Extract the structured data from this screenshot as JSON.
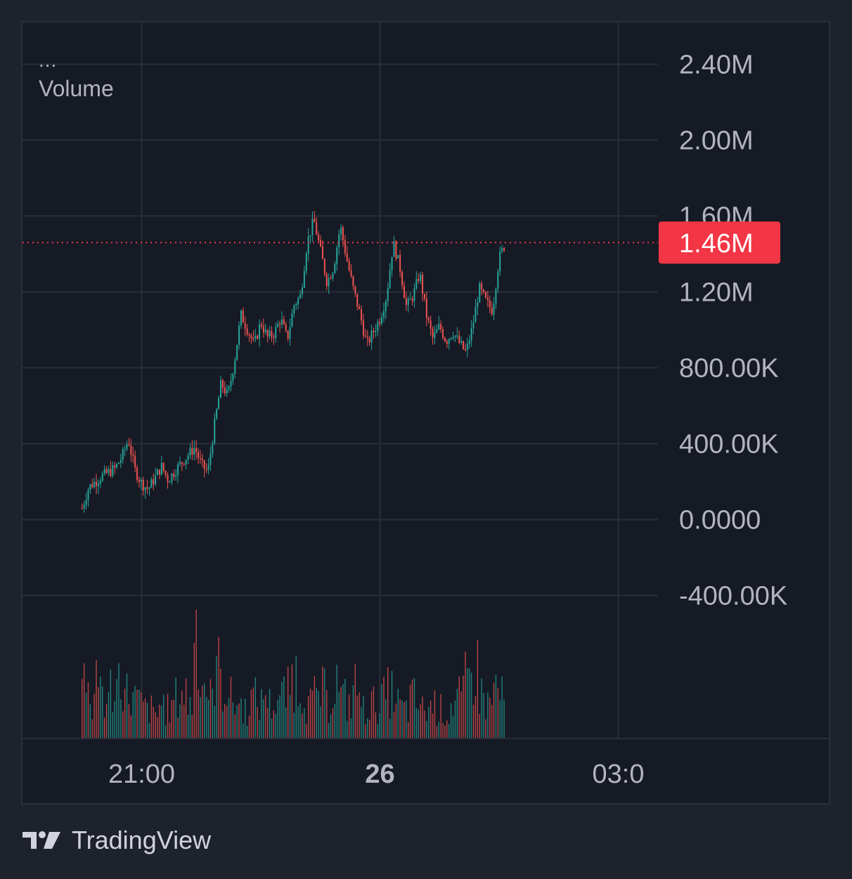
{
  "legend": {
    "collapse_glyph": "...",
    "title": "Volume"
  },
  "colors": {
    "background": "#161a25",
    "frame_border": "#2a2e39",
    "grid": "#2a2e39",
    "text": "#b2b5be",
    "up": "#26a69a",
    "down": "#ef5350",
    "last_value_badge": "#f23645"
  },
  "brand": {
    "logo_icon": "tradingview-logo-icon",
    "name": "TradingView"
  },
  "chart_data": {
    "type": "candlestick-with-volume",
    "title": "Volume",
    "y_axis": {
      "ticks": [
        2400000,
        2000000,
        1600000,
        1200000,
        800000,
        400000,
        0,
        -400000
      ],
      "tick_labels": [
        "2.40M",
        "2.00M",
        "1.60M",
        "1.20M",
        "800.00K",
        "400.00K",
        "0.0000",
        "-400.00K"
      ],
      "range": [
        -1150000,
        2620000
      ]
    },
    "x_axis": {
      "tick_labels": [
        "21:00",
        "26",
        "03:0"
      ],
      "bold_labels": [
        "26"
      ],
      "range": [
        "19:30",
        "03:30"
      ]
    },
    "last_value": {
      "label": "1.46M",
      "value": 1460000
    },
    "grid": true,
    "series": [
      {
        "kind": "candles",
        "points": [
          {
            "t": "20:15",
            "v": 60000
          },
          {
            "t": "20:20",
            "v": 170000
          },
          {
            "t": "20:30",
            "v": 230000
          },
          {
            "t": "20:40",
            "v": 270000
          },
          {
            "t": "20:45",
            "v": 330000
          },
          {
            "t": "20:50",
            "v": 420000
          },
          {
            "t": "20:55",
            "v": 260000
          },
          {
            "t": "21:00",
            "v": 190000
          },
          {
            "t": "21:05",
            "v": 160000
          },
          {
            "t": "21:10",
            "v": 220000
          },
          {
            "t": "21:15",
            "v": 280000
          },
          {
            "t": "21:20",
            "v": 210000
          },
          {
            "t": "21:30",
            "v": 300000
          },
          {
            "t": "21:40",
            "v": 380000
          },
          {
            "t": "21:45",
            "v": 290000
          },
          {
            "t": "21:50",
            "v": 250000
          },
          {
            "t": "21:55",
            "v": 500000
          },
          {
            "t": "22:00",
            "v": 720000
          },
          {
            "t": "22:05",
            "v": 650000
          },
          {
            "t": "22:10",
            "v": 830000
          },
          {
            "t": "22:15",
            "v": 1080000
          },
          {
            "t": "22:20",
            "v": 1000000
          },
          {
            "t": "22:25",
            "v": 920000
          },
          {
            "t": "22:30",
            "v": 1040000
          },
          {
            "t": "22:35",
            "v": 960000
          },
          {
            "t": "22:40",
            "v": 980000
          },
          {
            "t": "22:45",
            "v": 1060000
          },
          {
            "t": "22:50",
            "v": 950000
          },
          {
            "t": "22:55",
            "v": 1130000
          },
          {
            "t": "23:00",
            "v": 1180000
          },
          {
            "t": "23:05",
            "v": 1460000
          },
          {
            "t": "23:10",
            "v": 1580000
          },
          {
            "t": "23:15",
            "v": 1420000
          },
          {
            "t": "23:20",
            "v": 1250000
          },
          {
            "t": "23:25",
            "v": 1330000
          },
          {
            "t": "23:30",
            "v": 1550000
          },
          {
            "t": "23:35",
            "v": 1370000
          },
          {
            "t": "23:40",
            "v": 1210000
          },
          {
            "t": "23:45",
            "v": 1080000
          },
          {
            "t": "23:50",
            "v": 920000
          },
          {
            "t": "23:55",
            "v": 990000
          },
          {
            "t": "00:00",
            "v": 1060000
          },
          {
            "t": "00:05",
            "v": 1180000
          },
          {
            "t": "00:10",
            "v": 1460000
          },
          {
            "t": "00:15",
            "v": 1330000
          },
          {
            "t": "00:20",
            "v": 1120000
          },
          {
            "t": "00:25",
            "v": 1180000
          },
          {
            "t": "00:30",
            "v": 1300000
          },
          {
            "t": "00:35",
            "v": 1080000
          },
          {
            "t": "00:40",
            "v": 950000
          },
          {
            "t": "00:45",
            "v": 1020000
          },
          {
            "t": "00:50",
            "v": 940000
          },
          {
            "t": "00:55",
            "v": 990000
          },
          {
            "t": "01:00",
            "v": 930000
          },
          {
            "t": "01:05",
            "v": 880000
          },
          {
            "t": "01:10",
            "v": 1020000
          },
          {
            "t": "01:15",
            "v": 1220000
          },
          {
            "t": "01:20",
            "v": 1150000
          },
          {
            "t": "01:25",
            "v": 1100000
          },
          {
            "t": "01:30",
            "v": 1380000
          },
          {
            "t": "01:35",
            "v": 1460000
          }
        ]
      },
      {
        "kind": "volume-histogram",
        "values": [
          0.6,
          0.25,
          0.5,
          0.3,
          0.45,
          0.55,
          0.4,
          0.35,
          0.3,
          0.25,
          0.2,
          0.3,
          0.25,
          0.35,
          0.4,
          0.3,
          1.0,
          0.5,
          0.35,
          0.6,
          0.45,
          0.35,
          0.3,
          0.25,
          0.35,
          0.3,
          0.4,
          0.3,
          0.35,
          0.4,
          0.55,
          0.45,
          0.3,
          0.35,
          0.4,
          0.3,
          0.5,
          0.35,
          0.3,
          0.45,
          0.25,
          0.3,
          0.3,
          0.35,
          0.4,
          0.3,
          0.25,
          0.35,
          0.3,
          0.25,
          0.3,
          0.25,
          0.2,
          0.3,
          0.35,
          0.5,
          0.6,
          0.4,
          0.3,
          0.45,
          0.35
        ]
      }
    ]
  }
}
